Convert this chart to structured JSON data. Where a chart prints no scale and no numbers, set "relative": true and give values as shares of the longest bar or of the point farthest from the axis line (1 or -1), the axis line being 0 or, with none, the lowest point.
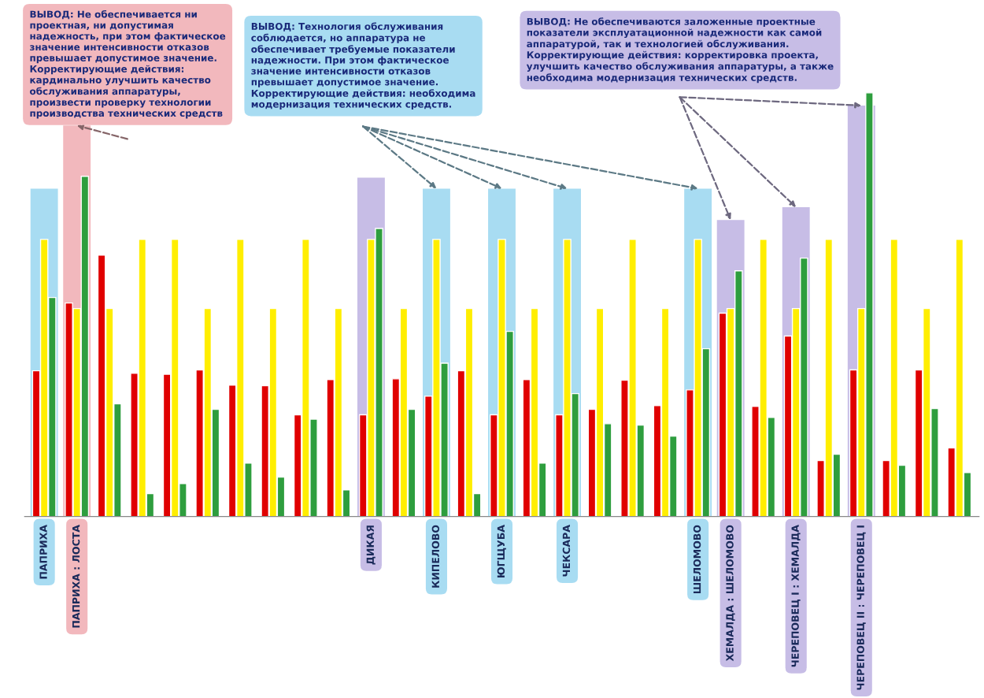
{
  "chart_data": {
    "type": "bar",
    "relative": true,
    "categories": [
      "ПАПРИХА",
      "ПАПРИХА : ЛОСТА",
      null,
      null,
      null,
      null,
      null,
      null,
      null,
      null,
      "ДИКАЯ",
      null,
      "КИПЕЛОВО",
      null,
      "ЮГЩУБА",
      null,
      "ЧЕКСАРА",
      null,
      null,
      null,
      "ШЕЛОМОВО",
      "ХЕМАЛДА : ШЕЛОМОВО",
      null,
      "ЧЕРЕПОВЕЦ I : ХЕМАЛДА",
      null,
      "ЧЕРЕПОВЕЦ II : ЧЕРЕПОВЕЦ I",
      null,
      null,
      null
    ],
    "series": [
      {
        "color": "#e00000",
        "values": [
          0.344,
          0.504,
          0.617,
          0.338,
          0.336,
          0.346,
          0.31,
          0.309,
          0.24,
          0.323,
          0.24,
          0.325,
          0.284,
          0.344,
          0.24,
          0.323,
          0.24,
          0.253,
          0.322,
          0.262,
          0.299,
          0.48,
          0.26,
          0.426,
          0.132,
          0.346,
          0.132,
          0.346,
          0.162
        ]
      },
      {
        "color": "#ffee00",
        "values": [
          0.654,
          0.491,
          0.491,
          0.654,
          0.654,
          0.491,
          0.654,
          0.491,
          0.654,
          0.491,
          0.654,
          0.491,
          0.654,
          0.491,
          0.654,
          0.491,
          0.654,
          0.491,
          0.654,
          0.491,
          0.654,
          0.491,
          0.654,
          0.491,
          0.654,
          0.491,
          0.654,
          0.491,
          0.654
        ]
      },
      {
        "color": "#2e9e3e",
        "values": [
          0.517,
          0.803,
          0.266,
          0.054,
          0.078,
          0.253,
          0.126,
          0.093,
          0.23,
          0.063,
          0.68,
          0.253,
          0.362,
          0.054,
          0.437,
          0.126,
          0.29,
          0.219,
          0.216,
          0.19,
          0.396,
          0.58,
          0.234,
          0.61,
          0.147,
          1.0,
          0.121,
          0.255,
          0.104
        ]
      }
    ],
    "bands": [
      {
        "axis": "x",
        "from": "ПАПРИХА : ЛОСТА",
        "to": "ПАПРИХА : ЛОСТА",
        "color": "#f2b8bd"
      },
      {
        "axis": "x",
        "from": "ПАПРИХА",
        "to": "ПАПРИХА",
        "color": "#a8dcf2"
      },
      {
        "axis": "x",
        "from": "КИПЕЛОВО",
        "to": "КИПЕЛОВО",
        "color": "#a8dcf2"
      },
      {
        "axis": "x",
        "from": "ЮГЩУБА",
        "to": "ЮГЩУБА",
        "color": "#a8dcf2"
      },
      {
        "axis": "x",
        "from": "ЧЕКСАРА",
        "to": "ЧЕКСАРА",
        "color": "#a8dcf2"
      },
      {
        "axis": "x",
        "from": "ШЕЛОМОВО",
        "to": "ШЕЛОМОВО",
        "color": "#a8dcf2"
      },
      {
        "axis": "x",
        "from": "ДИКАЯ",
        "to": "ДИКАЯ",
        "color": "#c7bde6"
      },
      {
        "axis": "x",
        "from": "ХЕМАЛДА : ШЕЛОМОВО",
        "to": "ХЕМАЛДА : ШЕЛОМОВО",
        "color": "#c7bde6"
      },
      {
        "axis": "x",
        "from": "ЧЕРЕПОВЕЦ I : ХЕМАЛДА",
        "to": "ЧЕРЕПОВЕЦ I : ХЕМАЛДА",
        "color": "#c7bde6"
      },
      {
        "axis": "x",
        "from": "ЧЕРЕПОВЕЦ II : ЧЕРЕПОВЕЦ I",
        "to": "ЧЕРЕПОВЕЦ II : ЧЕРЕПОВЕЦ I",
        "color": "#c7bde6"
      }
    ],
    "annotations": [
      "ВЫВОД: Не обеспечивается ни\nпроектная, ни допустимая\nнадежность, при этом фактическое\nзначение интенсивности отказов\nпревышает допустимое значение.\nКорректирующие действия:\nкардинально улучшить качество\nобслуживания аппаратуры,\nпроизвести проверку технологии\nпроизводства технических средств",
      "ВЫВОД: Технология обслуживания\nсоблюдается, но аппаратура не\nобеспечивает требуемые показатели\nнадежности. При этом фактическое\nзначение интенсивности отказов\nпревышает допустимое значение.\nКорректирующие действия: необходима\nмодернизация технических средств.",
      "ВЫВОД: Не обеспечиваются заложенные проектные\nпоказатели эксплуатационной надежности как самой\nаппаратурой, так и технологией обслуживания.\nКорректирующие действия: корректировка проекта,\nулучшить качество обслуживания аппаратуры, а также\nнеобходима модернизация технических средств."
    ],
    "grid": false,
    "legend": false
  }
}
